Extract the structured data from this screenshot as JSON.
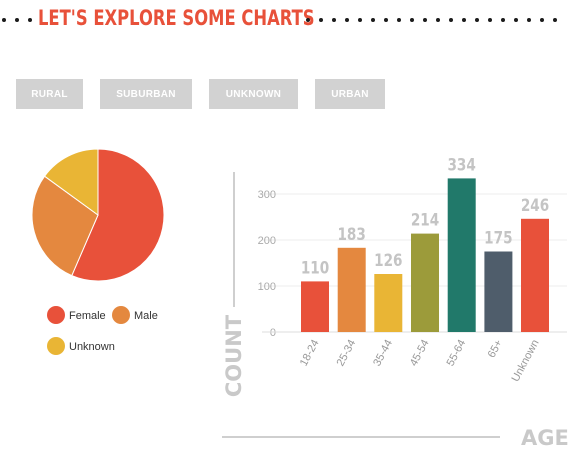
{
  "header": {
    "title": "LET'S EXPLORE SOME CHARTS"
  },
  "filters": [
    {
      "label": "RURAL"
    },
    {
      "label": "SUBURBAN"
    },
    {
      "label": "UNKNOWN"
    },
    {
      "label": "URBAN"
    }
  ],
  "chart_data": [
    {
      "type": "pie",
      "title": "",
      "categories": [
        "Female",
        "Male",
        "Unknown"
      ],
      "values": [
        56.5,
        28.5,
        15
      ],
      "colors": [
        "#e8513a",
        "#e4883f",
        "#e9b535"
      ],
      "legend": {
        "placement": "bottom",
        "entries": [
          "Female",
          "Male",
          "Unknown"
        ]
      }
    },
    {
      "type": "bar",
      "title": "",
      "categories": [
        "18-24",
        "25-34",
        "35-44",
        "45-54",
        "55-64",
        "65+",
        "Unknown"
      ],
      "values": [
        110,
        183,
        126,
        214,
        334,
        175,
        246
      ],
      "colors": [
        "#e8513a",
        "#e4883f",
        "#e9b535",
        "#9c9b3a",
        "#21796a",
        "#4f5d6b",
        "#e8513a"
      ],
      "xlabel": "AGE",
      "ylabel": "COUNT",
      "ylim": [
        0,
        350
      ],
      "yticks": [
        0,
        100,
        200,
        300
      ],
      "grid": true,
      "data_labels": true
    }
  ]
}
